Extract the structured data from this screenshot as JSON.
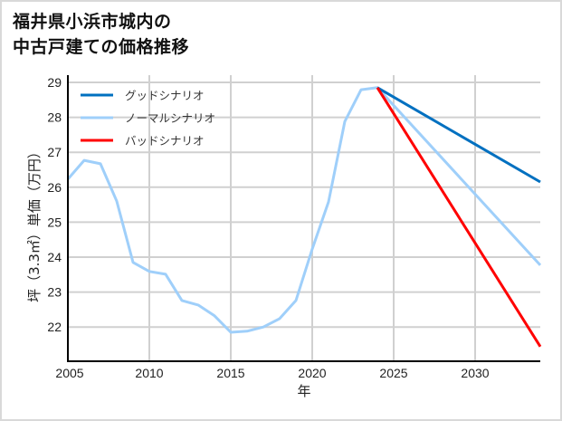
{
  "title": {
    "line1": "福井県小浜市城内の",
    "line2": "中古戸建ての価格推移"
  },
  "colors": {
    "good": "#0070c0",
    "normal": "#9fcffa",
    "bad": "#ff0000",
    "grid": "#d0d0d0",
    "axis": "#000000",
    "frame": "#d9d9d9"
  },
  "chart_data": {
    "type": "line",
    "title": "福井県小浜市城内の中古戸建ての価格推移",
    "xlabel": "年",
    "ylabel": "坪（3.3㎡）単価（万円）",
    "xlim": [
      2005,
      2034
    ],
    "ylim": [
      21.0,
      29.2
    ],
    "xticks": [
      2005,
      2010,
      2015,
      2020,
      2025,
      2030
    ],
    "yticks": [
      22,
      23,
      24,
      25,
      26,
      27,
      28,
      29
    ],
    "grid": true,
    "legend_position": "upper left",
    "series": [
      {
        "name": "グッドシナリオ",
        "color": "#0070c0",
        "x": [
          2024,
          2034
        ],
        "values": [
          28.85,
          26.15
        ]
      },
      {
        "name": "ノーマルシナリオ",
        "color": "#9fcffa",
        "x": [
          2005,
          2006,
          2007,
          2008,
          2009,
          2010,
          2011,
          2012,
          2013,
          2014,
          2015,
          2016,
          2017,
          2018,
          2019,
          2020,
          2021,
          2022,
          2023,
          2024,
          2034
        ],
        "values": [
          26.23,
          26.77,
          26.67,
          25.6,
          23.85,
          23.59,
          23.51,
          22.76,
          22.63,
          22.32,
          21.85,
          21.88,
          22.0,
          22.24,
          22.76,
          24.23,
          25.58,
          27.88,
          28.79,
          28.85,
          23.77
        ]
      },
      {
        "name": "バッドシナリオ",
        "color": "#ff0000",
        "x": [
          2024,
          2034
        ],
        "values": [
          28.85,
          21.44
        ]
      }
    ]
  },
  "legend": {
    "items": [
      {
        "label": "グッドシナリオ",
        "key": "good"
      },
      {
        "label": "ノーマルシナリオ",
        "key": "normal"
      },
      {
        "label": "バッドシナリオ",
        "key": "bad"
      }
    ]
  },
  "axes": {
    "xlabel": "年",
    "ylabel": "坪（3.3㎡）単価（万円）",
    "xtick_labels": [
      "2005",
      "2010",
      "2015",
      "2020",
      "2025",
      "2030"
    ],
    "ytick_labels": [
      "22",
      "23",
      "24",
      "25",
      "26",
      "27",
      "28",
      "29"
    ]
  }
}
